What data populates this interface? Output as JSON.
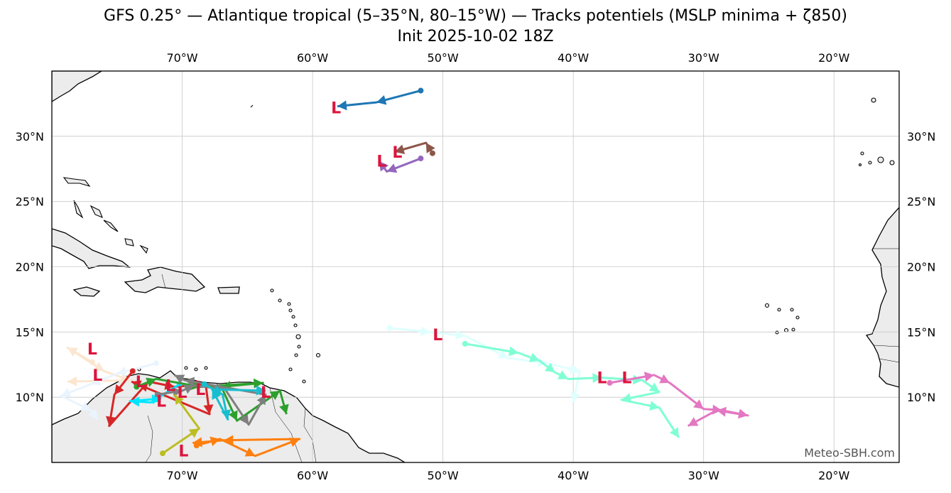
{
  "title": "GFS 0.25° — Atlantique tropical (5–35°N, 80–15°W) — Tracks potentiels (MSLP minima + ζ850)",
  "subtitle": "Init 2025-10-02 18Z",
  "credit": "Meteo-SBH.com",
  "low_marker": "L",
  "colors": {
    "land": "#ececec",
    "coast": "#000000",
    "grid": "#c8c8c8",
    "low": "#dc143c"
  },
  "map": {
    "lon_range": [
      -80,
      -15
    ],
    "lat_range": [
      5,
      35
    ],
    "grid": true,
    "top_ticks": [
      "70°W",
      "60°W",
      "50°W",
      "40°W",
      "30°W",
      "20°W"
    ],
    "bottom_ticks": [
      "70°W",
      "60°W",
      "50°W",
      "40°W",
      "30°W",
      "20°W"
    ],
    "left_ticks": [
      "10°N",
      "15°N",
      "20°N",
      "25°N",
      "30°N"
    ],
    "right_ticks": [
      "10°N",
      "15°N",
      "20°N",
      "25°N",
      "30°N"
    ],
    "lon_ticks": [
      -70,
      -60,
      -50,
      -40,
      -30,
      -20
    ],
    "lat_ticks": [
      10,
      15,
      20,
      25,
      30
    ]
  },
  "chart_data": {
    "type": "scatter",
    "title": "GFS 0.25° — Atlantique tropical (5–35°N, 80–15°W) — Tracks potentiels (MSLP minima + ζ850)",
    "subtitle": "Init 2025-10-02 18Z",
    "xlabel": "",
    "ylabel": "",
    "xlim": [
      -80,
      -15
    ],
    "ylim": [
      5,
      35
    ],
    "tracks": [
      {
        "color": "#1f77b4",
        "points": [
          [
            -51.7,
            33.5
          ],
          [
            -55.1,
            32.6
          ],
          [
            -58.1,
            32.3
          ]
        ]
      },
      {
        "color": "#8c564b",
        "points": [
          [
            -50.8,
            28.7
          ],
          [
            -51.3,
            29.5
          ],
          [
            -53.7,
            28.8
          ]
        ]
      },
      {
        "color": "#9467bd",
        "points": [
          [
            -51.7,
            28.3
          ],
          [
            -54.3,
            27.3
          ],
          [
            -54.9,
            28.1
          ]
        ]
      },
      {
        "color": "#e0ffff",
        "points": [
          [
            -54.1,
            15.3
          ],
          [
            -51.0,
            15.0
          ],
          [
            -48.3,
            14.7
          ],
          [
            -45.0,
            13.0
          ],
          [
            -42.0,
            12.6
          ],
          [
            -39.5,
            12.0
          ],
          [
            -40.0,
            9.6
          ]
        ]
      },
      {
        "color": "#7fffd4",
        "points": [
          [
            -48.3,
            14.1
          ],
          [
            -44.2,
            13.4
          ],
          [
            -42.6,
            12.8
          ],
          [
            -41.4,
            11.9
          ],
          [
            -40.4,
            11.4
          ],
          [
            -37.8,
            11.5
          ],
          [
            -34.7,
            11.3
          ],
          [
            -33.4,
            10.4
          ],
          [
            -36.3,
            9.8
          ],
          [
            -33.4,
            9.2
          ],
          [
            -31.9,
            6.9
          ]
        ]
      },
      {
        "color": "#e377c2",
        "points": [
          [
            -37.2,
            11.1
          ],
          [
            -33.8,
            11.7
          ],
          [
            -32.6,
            11.1
          ],
          [
            -30.0,
            9.1
          ],
          [
            -28.6,
            9.0
          ],
          [
            -26.6,
            8.6
          ],
          [
            -29.0,
            9.0
          ],
          [
            -31.2,
            7.8
          ]
        ]
      },
      {
        "color": "#fce6d0",
        "points": [
          [
            -76.9,
            12.7
          ],
          [
            -78.8,
            13.8
          ],
          [
            -76.0,
            12.0
          ],
          [
            -74.0,
            11.3
          ],
          [
            -78.8,
            11.2
          ]
        ]
      },
      {
        "color": "#eaf4ff",
        "points": [
          [
            -72.0,
            12.6
          ],
          [
            -75.0,
            11.8
          ],
          [
            -77.0,
            11.0
          ],
          [
            -79.3,
            10.1
          ],
          [
            -77.0,
            9.0
          ],
          [
            -76.5,
            8.3
          ]
        ]
      },
      {
        "color": "#d62728",
        "points": [
          [
            -73.8,
            12.0
          ],
          [
            -75.2,
            10.2
          ],
          [
            -75.6,
            7.8
          ],
          [
            -72.6,
            11.2
          ],
          [
            -70.6,
            10.8
          ],
          [
            -68.2,
            11.0
          ],
          [
            -67.9,
            8.7
          ],
          [
            -73.9,
            11.2
          ]
        ]
      },
      {
        "color": "#00e5ff",
        "points": [
          [
            -70.2,
            11.0
          ],
          [
            -72.4,
            9.6
          ],
          [
            -74.0,
            9.7
          ],
          [
            -71.6,
            9.9
          ]
        ]
      },
      {
        "color": "#2ca02c",
        "points": [
          [
            -73.5,
            10.8
          ],
          [
            -72.0,
            11.4
          ],
          [
            -68.6,
            10.8
          ],
          [
            -63.8,
            11.1
          ],
          [
            -67.0,
            10.8
          ],
          [
            -65.8,
            8.2
          ],
          [
            -62.5,
            10.5
          ],
          [
            -62.0,
            8.7
          ]
        ]
      },
      {
        "color": "#7f7f7f",
        "points": [
          [
            -71.9,
            10.2
          ],
          [
            -70.0,
            10.5
          ],
          [
            -69.1,
            10.9
          ],
          [
            -66.7,
            10.6
          ],
          [
            -64.9,
            7.9
          ],
          [
            -63.6,
            10.2
          ],
          [
            -69.8,
            11.3
          ],
          [
            -70.6,
            11.7
          ]
        ]
      },
      {
        "color": "#17becf",
        "points": [
          [
            -68.3,
            11.0
          ],
          [
            -66.9,
            10.2
          ],
          [
            -66.5,
            8.3
          ],
          [
            -67.7,
            10.6
          ],
          [
            -63.6,
            10.5
          ]
        ]
      },
      {
        "color": "#bcbd22",
        "points": [
          [
            -71.5,
            5.7
          ],
          [
            -68.7,
            7.6
          ],
          [
            -70.6,
            10.2
          ]
        ]
      },
      {
        "color": "#ff7f0e",
        "points": [
          [
            -68.9,
            6.3
          ],
          [
            -67.1,
            6.8
          ],
          [
            -64.4,
            5.5
          ],
          [
            -61.0,
            6.8
          ],
          [
            -66.8,
            6.7
          ],
          [
            -69.2,
            6.5
          ]
        ]
      }
    ],
    "lows": [
      [
        -58.2,
        32.2
      ],
      [
        -53.5,
        28.8
      ],
      [
        -54.7,
        28.1
      ],
      [
        -50.4,
        14.8
      ],
      [
        -37.8,
        11.5
      ],
      [
        -35.9,
        11.5
      ],
      [
        -76.9,
        13.7
      ],
      [
        -76.5,
        11.7
      ],
      [
        -73.2,
        11.2
      ],
      [
        -71.6,
        9.7
      ],
      [
        -70.0,
        10.4
      ],
      [
        -68.6,
        10.6
      ],
      [
        -63.6,
        10.4
      ],
      [
        -69.9,
        5.9
      ],
      [
        -70.9,
        10.9
      ]
    ]
  }
}
